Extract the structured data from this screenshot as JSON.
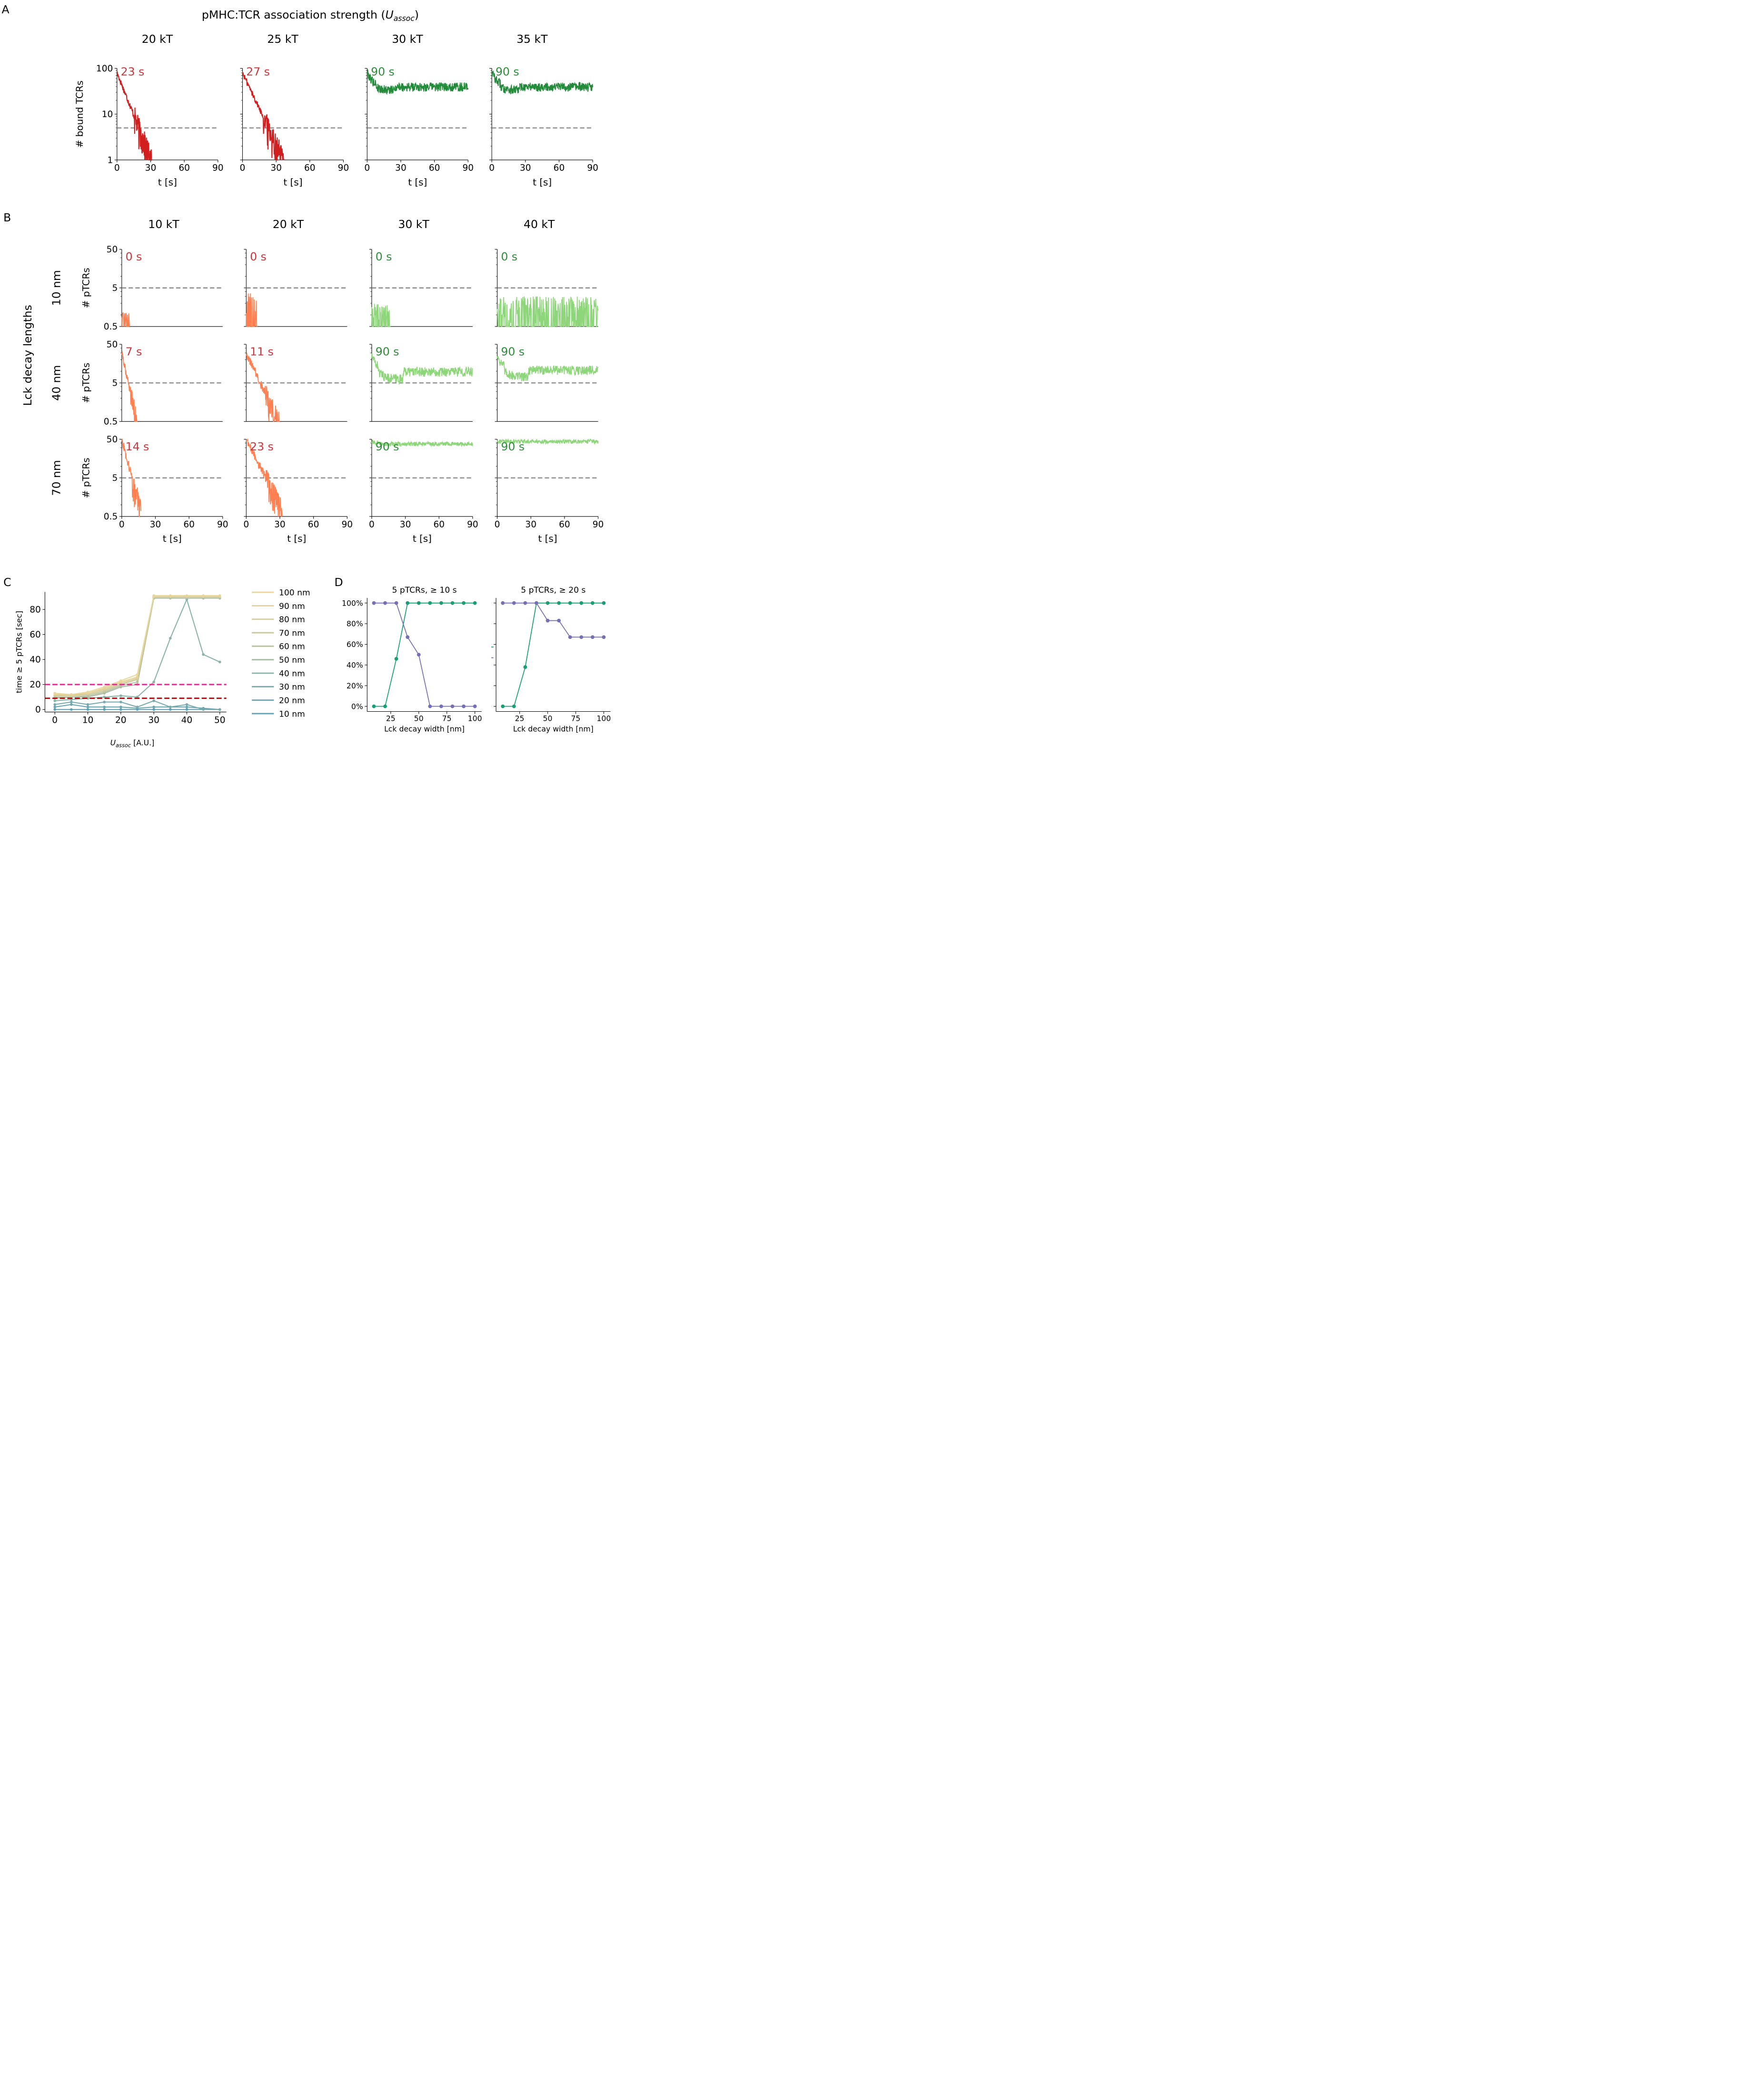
{
  "panel_labels": {
    "A": "A",
    "B": "B",
    "C": "C",
    "D": "D"
  },
  "colors": {
    "red": "#d11e1e",
    "red_text": "#c8353a",
    "orange": "#ff7f50",
    "green": "#228b3a",
    "green_text": "#2e8b3a",
    "lightgreen": "#8ed67a",
    "dash": "#808080",
    "magenta": "#e7298a",
    "darkred": "#c00000",
    "teal": "#1b9e77",
    "purple": "#7570b3",
    "lck_legend": [
      "#e8d79a",
      "#e6d293",
      "#d9cd9a",
      "#c9c89c",
      "#b8c2a0",
      "#a7bca4",
      "#8ab4aa",
      "#78aab0",
      "#6aa6b2",
      "#5fa3b6"
    ]
  },
  "chart_data": [
    {
      "id": "A",
      "type": "line",
      "title": "pMHC:TCR association strength (U_assoc)",
      "title_main": "pMHC:TCR association strength (",
      "title_var": "U",
      "title_sub": "assoc",
      "title_end": ")",
      "ylabel": "# bound TCRs",
      "yscale": "log",
      "ylim": [
        1,
        100
      ],
      "yticks": [
        "1",
        "10",
        "100"
      ],
      "xlabel": "t [s]",
      "xlim": [
        0,
        90
      ],
      "xticks": [
        "0",
        "30",
        "60",
        "90"
      ],
      "threshold": 5,
      "subplots": [
        {
          "column": "20 kT",
          "annotation": "23 s",
          "status": "fail",
          "decay_end": 31
        },
        {
          "column": "25 kT",
          "annotation": "27 s",
          "status": "fail",
          "decay_end": 37
        },
        {
          "column": "30 kT",
          "annotation": "90 s",
          "status": "pass",
          "plateau": 40
        },
        {
          "column": "35 kT",
          "annotation": "90 s",
          "status": "pass",
          "plateau": 40
        }
      ]
    },
    {
      "id": "B",
      "type": "line",
      "row_title": "Lck decay lengths",
      "ylabel": "# pTCRs",
      "yscale": "log",
      "ylim": [
        0.5,
        50
      ],
      "yticks": [
        "0.5",
        "5",
        "50"
      ],
      "xlabel": "t [s]",
      "xlim": [
        0,
        90
      ],
      "xticks": [
        "0",
        "30",
        "60",
        "90"
      ],
      "threshold": 5,
      "columns": [
        "10 kT",
        "20 kT",
        "30 kT",
        "40 kT"
      ],
      "rows": [
        {
          "label": "10 nm",
          "cells": [
            {
              "annotation": "0 s",
              "kind": "low",
              "end": 7,
              "peak": 1.2
            },
            {
              "annotation": "0 s",
              "kind": "low",
              "end": 10,
              "peak": 4
            },
            {
              "annotation": "0 s",
              "kind": "low",
              "end": 17,
              "peak": 2
            },
            {
              "annotation": "0 s",
              "kind": "low",
              "end": 90,
              "peak": 3
            }
          ]
        },
        {
          "label": "40 nm",
          "cells": [
            {
              "annotation": "7 s",
              "kind": "decay",
              "end": 14,
              "start": 30
            },
            {
              "annotation": "11 s",
              "kind": "decay",
              "end": 30,
              "start": 30
            },
            {
              "annotation": "90 s",
              "kind": "plateau",
              "level": 10,
              "start": 25
            },
            {
              "annotation": "90 s",
              "kind": "plateau",
              "level": 11,
              "start": 25
            }
          ]
        },
        {
          "label": "70 nm",
          "cells": [
            {
              "annotation": "14 s",
              "kind": "decay",
              "end": 17,
              "start": 50
            },
            {
              "annotation": "23 s",
              "kind": "decay",
              "end": 32,
              "start": 50
            },
            {
              "annotation": "90 s",
              "kind": "plateau",
              "level": 38,
              "start": 45
            },
            {
              "annotation": "90 s",
              "kind": "plateau",
              "level": 44,
              "start": 45
            }
          ]
        }
      ]
    },
    {
      "id": "C",
      "type": "line",
      "ylabel": "time ≥ 5 pTCRs [sec]",
      "xlabel": "U_assoc [A.U.]",
      "xlabel_var": "U",
      "xlabel_sub": "assoc",
      "xlabel_units": " [A.U.]",
      "x": [
        0,
        5,
        10,
        15,
        20,
        25,
        30,
        35,
        40,
        45,
        50
      ],
      "xlim": [
        -3,
        52
      ],
      "ylim": [
        -2,
        94
      ],
      "xticks": [
        "0",
        "10",
        "20",
        "30",
        "40",
        "50"
      ],
      "yticks": [
        "0",
        "20",
        "40",
        "60",
        "80"
      ],
      "hlines": [
        {
          "y": 20,
          "color": "magenta"
        },
        {
          "y": 9,
          "color": "darkred"
        }
      ],
      "series": [
        {
          "name": "100 nm",
          "values": [
            13,
            12,
            14,
            18,
            23,
            28,
            91,
            91,
            91,
            91,
            91
          ]
        },
        {
          "name": "90 nm",
          "values": [
            12,
            12,
            13,
            17,
            22,
            26,
            91,
            91,
            91,
            91,
            91
          ]
        },
        {
          "name": "80 nm",
          "values": [
            12,
            11,
            13,
            16,
            21,
            25,
            90,
            90,
            90,
            90,
            90
          ]
        },
        {
          "name": "70 nm",
          "values": [
            11,
            11,
            12,
            15,
            20,
            24,
            90,
            90,
            90,
            90,
            90
          ]
        },
        {
          "name": "60 nm",
          "values": [
            10,
            10,
            11,
            14,
            19,
            22,
            90,
            90,
            90,
            90,
            90
          ]
        },
        {
          "name": "50 nm",
          "values": [
            9,
            10,
            10,
            13,
            18,
            20,
            89,
            89,
            89,
            89,
            89
          ]
        },
        {
          "name": "40 nm",
          "values": [
            7,
            8,
            9,
            10,
            11,
            10,
            22,
            57,
            88,
            44,
            38
          ]
        },
        {
          "name": "30 nm",
          "values": [
            4,
            6,
            4,
            6,
            6,
            2,
            7,
            2,
            4,
            0,
            0
          ]
        },
        {
          "name": "20 nm",
          "values": [
            2,
            4,
            2,
            2,
            2,
            1,
            2,
            2,
            2,
            1,
            0
          ]
        },
        {
          "name": "10 nm",
          "values": [
            0,
            0,
            0,
            0,
            0,
            0,
            0,
            0,
            0,
            0,
            0
          ]
        }
      ]
    },
    {
      "id": "D",
      "type": "line",
      "xlabel": "Lck decay width [nm]",
      "x": [
        10,
        20,
        30,
        40,
        50,
        60,
        70,
        80,
        90,
        100
      ],
      "xlim": [
        4,
        106
      ],
      "ylim": [
        -5,
        105
      ],
      "xticks": [
        "25",
        "50",
        "75",
        "100"
      ],
      "xtick_values": [
        25,
        50,
        75,
        100
      ],
      "yticks": [
        "0%",
        "20%",
        "40%",
        "60%",
        "80%",
        "100%"
      ],
      "panels": [
        {
          "title": "5 pTCRs,  ≥  10 s",
          "series": [
            {
              "name": "green",
              "values": [
                0,
                0,
                46,
                100,
                100,
                100,
                100,
                100,
                100,
                100
              ]
            },
            {
              "name": "purple",
              "values": [
                100,
                100,
                100,
                67,
                50,
                0,
                0,
                0,
                0,
                0
              ]
            }
          ]
        },
        {
          "title": "5 pTCRs,  ≥  20 s",
          "series": [
            {
              "name": "green",
              "values": [
                0,
                0,
                38,
                100,
                100,
                100,
                100,
                100,
                100,
                100
              ]
            },
            {
              "name": "purple",
              "values": [
                100,
                100,
                100,
                100,
                83,
                83,
                67,
                67,
                67,
                67
              ]
            }
          ]
        }
      ]
    }
  ]
}
